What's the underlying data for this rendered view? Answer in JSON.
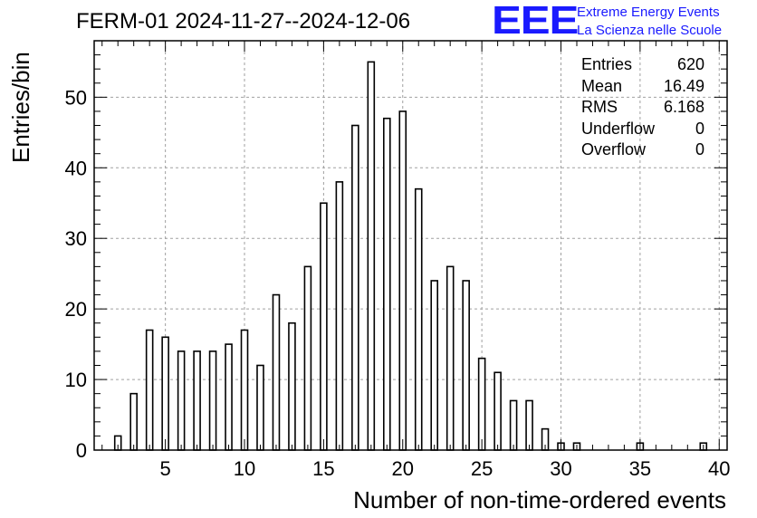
{
  "title": "FERM-01 2024-11-27--2024-12-06",
  "logo": {
    "mark": "EEE",
    "line1": "Extreme Energy Events",
    "line2": "La Scienza nelle Scuole",
    "color": "#1a1aff"
  },
  "stats": [
    {
      "label": "Entries",
      "value": "620"
    },
    {
      "label": "Mean",
      "value": "16.49"
    },
    {
      "label": "RMS",
      "value": "6.168"
    },
    {
      "label": "Underflow",
      "value": "0"
    },
    {
      "label": "Overflow",
      "value": "0"
    }
  ],
  "chart_data": {
    "type": "bar",
    "title": "FERM-01 2024-11-27--2024-12-06",
    "xlabel": "Number of non-time-ordered events",
    "ylabel": "Entries/bin",
    "xlim": [
      0.5,
      40.5
    ],
    "ylim": [
      0,
      58
    ],
    "xticks": [
      5,
      10,
      15,
      20,
      25,
      30,
      35,
      40
    ],
    "yticks": [
      0,
      10,
      20,
      30,
      40,
      50
    ],
    "grid": true,
    "bin_width": 1,
    "bar_fraction": 0.4,
    "x": [
      2,
      3,
      4,
      5,
      6,
      7,
      8,
      9,
      10,
      11,
      12,
      13,
      14,
      15,
      16,
      17,
      18,
      19,
      20,
      21,
      22,
      23,
      24,
      25,
      26,
      27,
      28,
      29,
      30,
      31,
      35,
      39
    ],
    "values": [
      2,
      8,
      17,
      16,
      14,
      14,
      14,
      15,
      17,
      12,
      22,
      18,
      26,
      35,
      38,
      46,
      55,
      47,
      48,
      37,
      24,
      26,
      24,
      13,
      11,
      7,
      7,
      3,
      1,
      1,
      1,
      1
    ]
  }
}
